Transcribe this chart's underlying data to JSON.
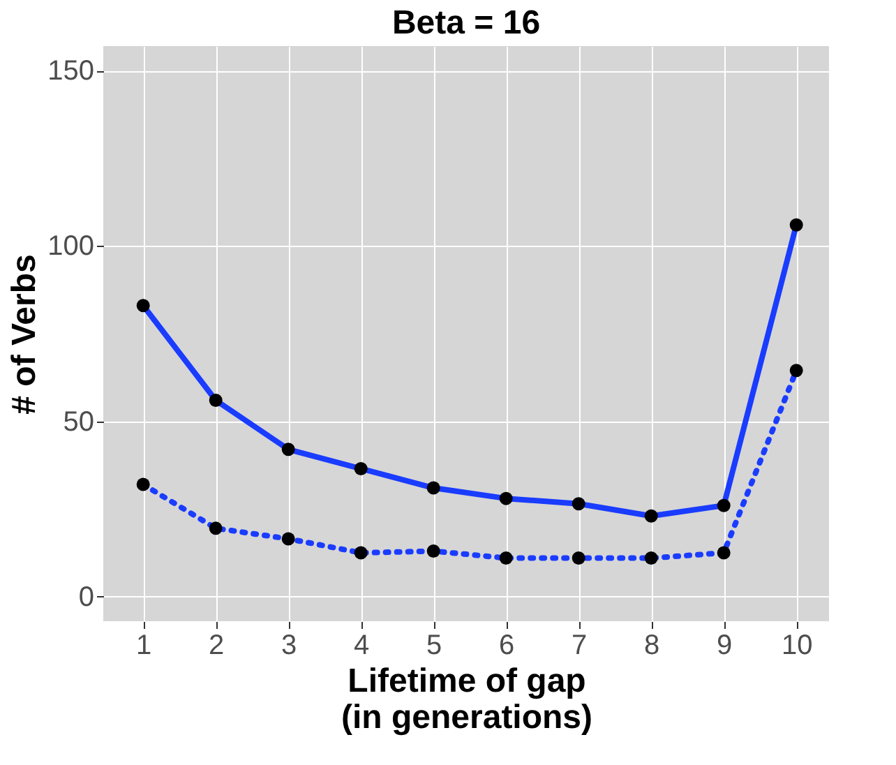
{
  "chart_data": {
    "type": "line",
    "title": "Beta = 16",
    "xlabel": "Lifetime of gap\n(in generations)",
    "ylabel": "# of Verbs",
    "categories": [
      "1",
      "2",
      "3",
      "4",
      "5",
      "6",
      "7",
      "8",
      "9",
      "10"
    ],
    "series": [
      {
        "color": "#1a3cff",
        "line_style": "solid",
        "values": [
          83,
          56,
          42,
          36.5,
          31,
          28,
          26.5,
          23,
          26,
          106
        ]
      },
      {
        "color": "#1a3cff",
        "line_style": "dotted",
        "values": [
          32,
          19.5,
          16.5,
          12.5,
          13,
          11,
          11,
          11,
          12.5,
          64.5
        ]
      }
    ],
    "ylim": [
      -7,
      157
    ],
    "yticks": [
      0,
      50,
      100,
      150
    ],
    "grid": true,
    "marker": "circle",
    "legend": false
  }
}
